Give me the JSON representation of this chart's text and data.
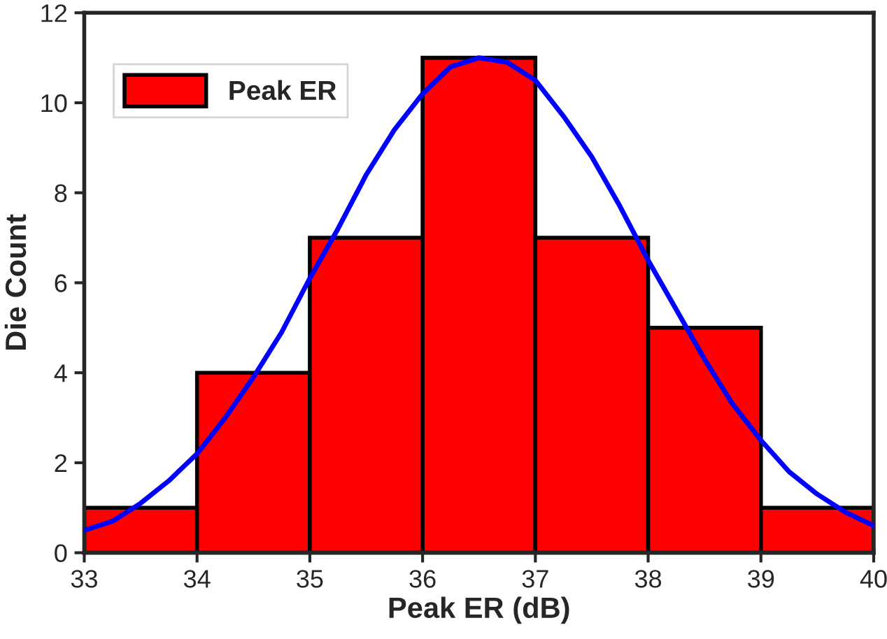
{
  "chart_data": {
    "type": "histogram",
    "xlabel": "Peak ER (dB)",
    "ylabel": "Die Count",
    "bins": [
      33,
      34,
      35,
      36,
      37,
      38,
      39,
      40
    ],
    "series": [
      {
        "name": "Peak ER",
        "color": "#ff0000",
        "values": [
          1,
          4,
          7,
          11,
          7,
          5,
          1
        ]
      },
      {
        "type": "line",
        "color": "#0000ff",
        "x": [
          33,
          33.25,
          33.5,
          33.75,
          34,
          34.25,
          34.5,
          34.75,
          35,
          35.25,
          35.5,
          35.75,
          36,
          36.25,
          36.5,
          36.75,
          37,
          37.25,
          37.5,
          37.75,
          38,
          38.25,
          38.5,
          38.75,
          39,
          39.25,
          39.5,
          39.75,
          40
        ],
        "values": [
          0.5,
          0.7,
          1.1,
          1.6,
          2.2,
          3.0,
          3.9,
          4.9,
          6.1,
          7.2,
          8.4,
          9.4,
          10.2,
          10.8,
          11.0,
          10.9,
          10.5,
          9.7,
          8.8,
          7.7,
          6.5,
          5.4,
          4.3,
          3.3,
          2.5,
          1.8,
          1.3,
          0.9,
          0.6
        ]
      }
    ],
    "xlim": [
      33,
      40
    ],
    "xticks": [
      33,
      34,
      35,
      36,
      37,
      38,
      39,
      40
    ],
    "ylim": [
      0,
      12
    ],
    "yticks": [
      0,
      2,
      4,
      6,
      8,
      10,
      12
    ],
    "legend": "top left",
    "grid": false,
    "line_style": "solid",
    "marker": "none"
  }
}
